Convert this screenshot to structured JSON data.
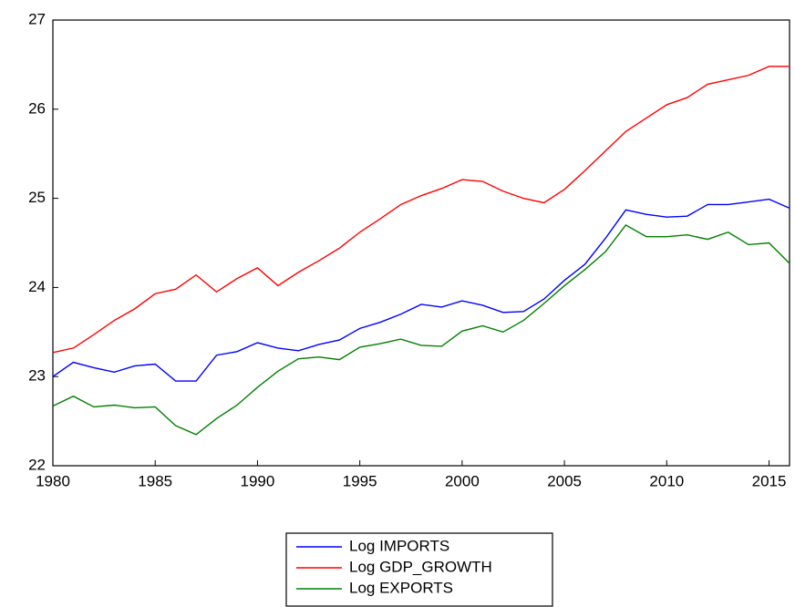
{
  "chart_data": {
    "type": "line",
    "x": [
      1980,
      1981,
      1982,
      1983,
      1984,
      1985,
      1986,
      1987,
      1988,
      1989,
      1990,
      1991,
      1992,
      1993,
      1994,
      1995,
      1996,
      1997,
      1998,
      1999,
      2000,
      2001,
      2002,
      2003,
      2004,
      2005,
      2006,
      2007,
      2008,
      2009,
      2010,
      2011,
      2012,
      2013,
      2014,
      2015,
      2016
    ],
    "series": [
      {
        "name": "Log IMPORTS",
        "color": "#0000ff",
        "values": [
          23.0,
          23.16,
          23.1,
          23.05,
          23.12,
          23.14,
          22.95,
          22.95,
          23.24,
          23.28,
          23.38,
          23.32,
          23.29,
          23.36,
          23.41,
          23.54,
          23.61,
          23.7,
          23.81,
          23.78,
          23.85,
          23.8,
          23.72,
          23.73,
          23.87,
          24.08,
          24.26,
          24.55,
          24.87,
          24.82,
          24.79,
          24.8,
          24.93,
          24.93,
          24.96,
          24.99,
          24.89
        ]
      },
      {
        "name": "Log GDP_GROWTH",
        "color": "#ff0000",
        "values": [
          23.27,
          23.32,
          23.47,
          23.63,
          23.76,
          23.93,
          23.98,
          24.14,
          23.95,
          24.1,
          24.22,
          24.02,
          24.17,
          24.3,
          24.44,
          24.62,
          24.77,
          24.93,
          25.03,
          25.11,
          25.21,
          25.19,
          25.08,
          25.0,
          24.95,
          25.1,
          25.31,
          25.53,
          25.75,
          25.9,
          26.05,
          26.13,
          26.28,
          26.33,
          26.38,
          26.48,
          26.48
        ]
      },
      {
        "name": "Log EXPORTS",
        "color": "#008000",
        "values": [
          22.67,
          22.78,
          22.66,
          22.68,
          22.65,
          22.66,
          22.45,
          22.35,
          22.53,
          22.68,
          22.88,
          23.06,
          23.2,
          23.22,
          23.19,
          23.33,
          23.37,
          23.42,
          23.35,
          23.34,
          23.51,
          23.57,
          23.5,
          23.63,
          23.82,
          24.02,
          24.2,
          24.4,
          24.7,
          24.57,
          24.57,
          24.59,
          24.54,
          24.62,
          24.48,
          24.5,
          24.27
        ]
      }
    ],
    "xlim": [
      1980,
      2016
    ],
    "xticks": [
      1980,
      1985,
      1990,
      1995,
      2000,
      2005,
      2010,
      2015
    ],
    "ylim": [
      22,
      27
    ],
    "yticks": [
      22,
      23,
      24,
      25,
      26,
      27
    ]
  }
}
